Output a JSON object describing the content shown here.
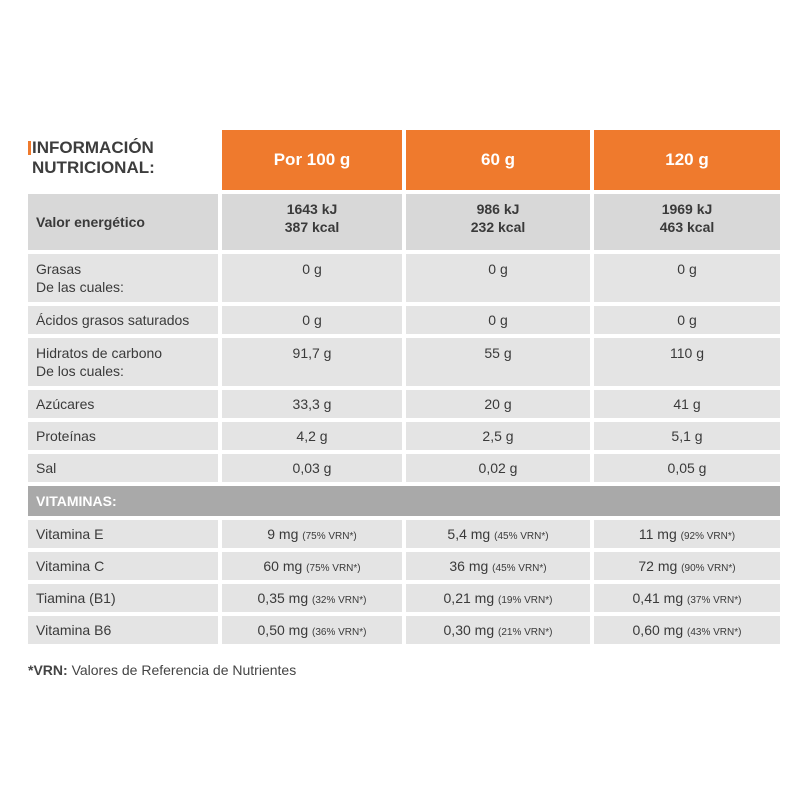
{
  "header": {
    "title": [
      "INFORMACIÓN",
      "NUTRICIONAL:"
    ],
    "columns": [
      "Por 100 g",
      "60 g",
      "120 g"
    ]
  },
  "energy": {
    "label": "Valor energético",
    "values": [
      [
        "1643 kJ",
        "387 kcal"
      ],
      [
        "986 kJ",
        "232 kcal"
      ],
      [
        "1969 kJ",
        "463 kcal"
      ]
    ]
  },
  "rows": [
    {
      "label": [
        "Grasas",
        "De las cuales:"
      ],
      "values": [
        "0 g",
        "0 g",
        "0 g"
      ]
    },
    {
      "label": [
        "Ácidos grasos saturados"
      ],
      "values": [
        "0 g",
        "0 g",
        "0 g"
      ]
    },
    {
      "label": [
        "Hidratos de carbono",
        "De los cuales:"
      ],
      "values": [
        "91,7 g",
        "55 g",
        "110 g"
      ]
    },
    {
      "label": [
        "Azúcares"
      ],
      "values": [
        "33,3 g",
        "20 g",
        "41 g"
      ]
    },
    {
      "label": [
        "Proteínas"
      ],
      "values": [
        "4,2 g",
        "2,5 g",
        "5,1 g"
      ]
    },
    {
      "label": [
        "Sal"
      ],
      "values": [
        "0,03 g",
        "0,02 g",
        "0,05 g"
      ]
    }
  ],
  "vitamins": {
    "title": "VITAMINAS:",
    "rows": [
      {
        "label": "Vitamina E",
        "values": [
          {
            "amount": "9 mg",
            "vrn": "(75% VRN*)"
          },
          {
            "amount": "5,4 mg",
            "vrn": "(45% VRN*)"
          },
          {
            "amount": "11 mg",
            "vrn": "(92% VRN*)"
          }
        ]
      },
      {
        "label": "Vitamina C",
        "values": [
          {
            "amount": "60 mg",
            "vrn": "(75% VRN*)"
          },
          {
            "amount": "36 mg",
            "vrn": "(45% VRN*)"
          },
          {
            "amount": "72 mg",
            "vrn": "(90% VRN*)"
          }
        ]
      },
      {
        "label": "Tiamina (B1)",
        "values": [
          {
            "amount": "0,35 mg",
            "vrn": "(32% VRN*)"
          },
          {
            "amount": "0,21 mg",
            "vrn": "(19% VRN*)"
          },
          {
            "amount": "0,41 mg",
            "vrn": "(37% VRN*)"
          }
        ]
      },
      {
        "label": "Vitamina B6",
        "values": [
          {
            "amount": "0,50 mg",
            "vrn": "(36% VRN*)"
          },
          {
            "amount": "0,30 mg",
            "vrn": "(21% VRN*)"
          },
          {
            "amount": "0,60 mg",
            "vrn": "(43% VRN*)"
          }
        ]
      }
    ]
  },
  "footnote": {
    "term": "*VRN:",
    "text": "Valores de Referencia de Nutrientes"
  }
}
